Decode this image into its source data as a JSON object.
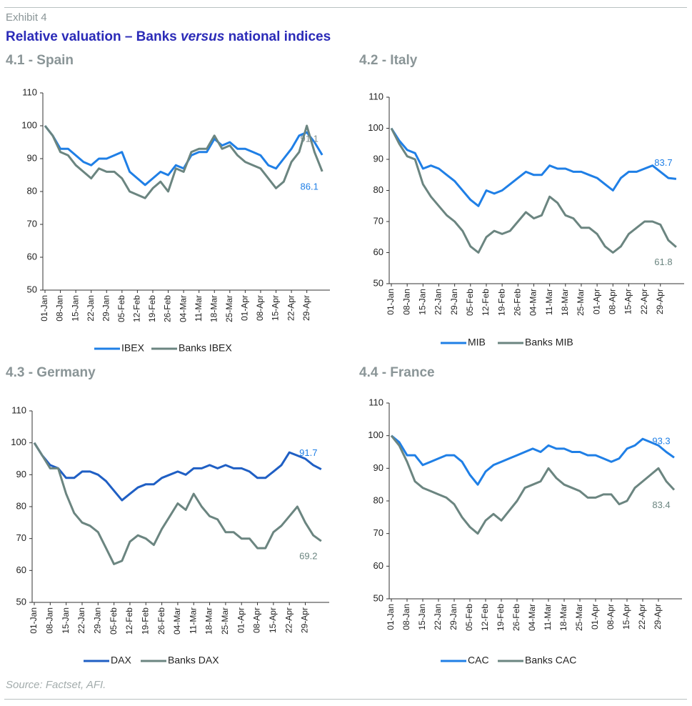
{
  "exhibit": "Exhibit 4",
  "title": [
    "Relative valuation – Banks",
    "versus",
    "national indices"
  ],
  "source": "Source: Factset, AFI.",
  "chart_data": [
    {
      "type": "line",
      "title": "4.1 - Spain",
      "categories": [
        "01-Jan",
        null,
        "08-Jan",
        null,
        "15-Jan",
        null,
        "22-Jan",
        null,
        "29-Jan",
        null,
        "05-Feb",
        null,
        "12-Feb",
        null,
        "19-Feb",
        null,
        "26-Feb",
        null,
        "04-Mar",
        null,
        "11-Mar",
        null,
        "18-Mar",
        null,
        "25-Mar",
        null,
        "01-Apr",
        null,
        "08-Apr",
        null,
        "15-Apr",
        null,
        "22-Apr",
        null,
        "29-Apr",
        null,
        null
      ],
      "ylim": [
        50,
        110
      ],
      "yticks": [
        50,
        60,
        70,
        80,
        90,
        100,
        110
      ],
      "series": [
        {
          "name": "IBEX",
          "color": "#1f7fe6",
          "label_color": "#7f8e8c",
          "end_label": "91.1",
          "values": [
            100,
            97,
            93,
            93,
            91,
            89,
            88,
            90,
            90,
            91,
            92,
            86,
            84,
            82,
            84,
            86,
            85,
            88,
            87,
            91,
            92,
            92,
            96,
            94,
            95,
            93,
            93,
            92,
            91,
            88,
            87,
            90,
            93,
            97,
            98,
            95,
            91.1
          ]
        },
        {
          "name": "Banks IBEX",
          "color": "#6b8580",
          "label_color": "#1f7fe6",
          "end_label": "86.1",
          "values": [
            100,
            97,
            92,
            91,
            88,
            86,
            84,
            87,
            86,
            86,
            84,
            80,
            79,
            78,
            81,
            83,
            80,
            87,
            86,
            92,
            93,
            93,
            97,
            93,
            94,
            91,
            89,
            88,
            87,
            84,
            81,
            83,
            89,
            92,
            100,
            92,
            86.1
          ]
        }
      ]
    },
    {
      "type": "line",
      "title": "4.2 - Italy",
      "categories": [
        "01-Jan",
        null,
        "08-Jan",
        null,
        "15-Jan",
        null,
        "22-Jan",
        null,
        "29-Jan",
        null,
        "05-Feb",
        null,
        "12-Feb",
        null,
        "19-Feb",
        null,
        "26-Feb",
        null,
        "04-Mar",
        null,
        "11-Mar",
        null,
        "18-Mar",
        null,
        "25-Mar",
        null,
        "01-Apr",
        null,
        "08-Apr",
        null,
        "15-Apr",
        null,
        "22-Apr",
        null,
        "29-Apr",
        null,
        null
      ],
      "ylim": [
        50,
        110
      ],
      "yticks": [
        50,
        60,
        70,
        80,
        90,
        100,
        110
      ],
      "series": [
        {
          "name": "MIB",
          "color": "#1f7fe6",
          "label_color": "#1f7fe6",
          "end_label": "83.7",
          "values": [
            100,
            96,
            93,
            92,
            87,
            88,
            87,
            85,
            83,
            80,
            77,
            75,
            80,
            79,
            80,
            82,
            84,
            86,
            85,
            85,
            88,
            87,
            87,
            86,
            86,
            85,
            84,
            82,
            80,
            84,
            86,
            86,
            87,
            88,
            86,
            84,
            83.7
          ]
        },
        {
          "name": "Banks MIB",
          "color": "#6b8580",
          "label_color": "#6b8580",
          "end_label": "61.8",
          "values": [
            100,
            95,
            91,
            90,
            82,
            78,
            75,
            72,
            70,
            67,
            62,
            60,
            65,
            67,
            66,
            67,
            70,
            73,
            71,
            72,
            78,
            76,
            72,
            71,
            68,
            68,
            66,
            62,
            60,
            62,
            66,
            68,
            70,
            70,
            69,
            64,
            61.8
          ]
        }
      ]
    },
    {
      "type": "line",
      "title": "4.3 - Germany",
      "categories": [
        "01-Jan",
        null,
        "08-Jan",
        null,
        "15-Jan",
        null,
        "22-Jan",
        null,
        "29-Jan",
        null,
        "05-Feb",
        null,
        "12-Feb",
        null,
        "19-Feb",
        null,
        "26-Feb",
        null,
        "04-Mar",
        null,
        "11-Mar",
        null,
        "18-Mar",
        null,
        "25-Mar",
        null,
        "01-Apr",
        null,
        "08-Apr",
        null,
        "15-Apr",
        null,
        "22-Apr",
        null,
        "29-Apr",
        null,
        null
      ],
      "ylim": [
        50,
        110
      ],
      "yticks": [
        50,
        60,
        70,
        80,
        90,
        100,
        110
      ],
      "series": [
        {
          "name": "DAX",
          "color": "#1f5fc4",
          "label_color": "#1f7fe6",
          "end_label": "91.7",
          "values": [
            100,
            96,
            93,
            92,
            89,
            89,
            91,
            91,
            90,
            88,
            85,
            82,
            84,
            86,
            87,
            87,
            89,
            90,
            91,
            90,
            92,
            92,
            93,
            92,
            93,
            92,
            92,
            91,
            89,
            89,
            91,
            93,
            97,
            96,
            95,
            93,
            91.7
          ]
        },
        {
          "name": "Banks DAX",
          "color": "#6b8580",
          "label_color": "#6b8580",
          "end_label": "69.2",
          "values": [
            100,
            96,
            92,
            92,
            84,
            78,
            75,
            74,
            72,
            67,
            62,
            63,
            69,
            71,
            70,
            68,
            73,
            77,
            81,
            79,
            84,
            80,
            77,
            76,
            72,
            72,
            70,
            70,
            67,
            67,
            72,
            74,
            77,
            80,
            75,
            71,
            69.2
          ]
        }
      ]
    },
    {
      "type": "line",
      "title": "4.4 - France",
      "categories": [
        "01-Jan",
        null,
        "08-Jan",
        null,
        "15-Jan",
        null,
        "22-Jan",
        null,
        "29-Jan",
        null,
        "05-Feb",
        null,
        "12-Feb",
        null,
        "19-Feb",
        null,
        "26-Feb",
        null,
        "04-Mar",
        null,
        "11-Mar",
        null,
        "18-Mar",
        null,
        "25-Mar",
        null,
        "01-Apr",
        null,
        "08-Apr",
        null,
        "15-Apr",
        null,
        "22-Apr",
        null,
        "29-Apr",
        null,
        null
      ],
      "ylim": [
        50,
        110
      ],
      "yticks": [
        50,
        60,
        70,
        80,
        90,
        100,
        110
      ],
      "series": [
        {
          "name": "CAC",
          "color": "#1f7fe6",
          "label_color": "#1f7fe6",
          "end_label": "93.3",
          "values": [
            100,
            98,
            94,
            94,
            91,
            92,
            93,
            94,
            94,
            92,
            88,
            85,
            89,
            91,
            92,
            93,
            94,
            95,
            96,
            95,
            97,
            96,
            96,
            95,
            95,
            94,
            94,
            93,
            92,
            93,
            96,
            97,
            99,
            98,
            97,
            95,
            93.3
          ]
        },
        {
          "name": "Banks CAC",
          "color": "#6b8580",
          "label_color": "#6b8580",
          "end_label": "83.4",
          "values": [
            100,
            97,
            92,
            86,
            84,
            83,
            82,
            81,
            79,
            75,
            72,
            70,
            74,
            76,
            74,
            77,
            80,
            84,
            85,
            86,
            90,
            87,
            85,
            84,
            83,
            81,
            81,
            82,
            82,
            79,
            80,
            84,
            86,
            88,
            90,
            86,
            83.4
          ]
        }
      ]
    }
  ]
}
